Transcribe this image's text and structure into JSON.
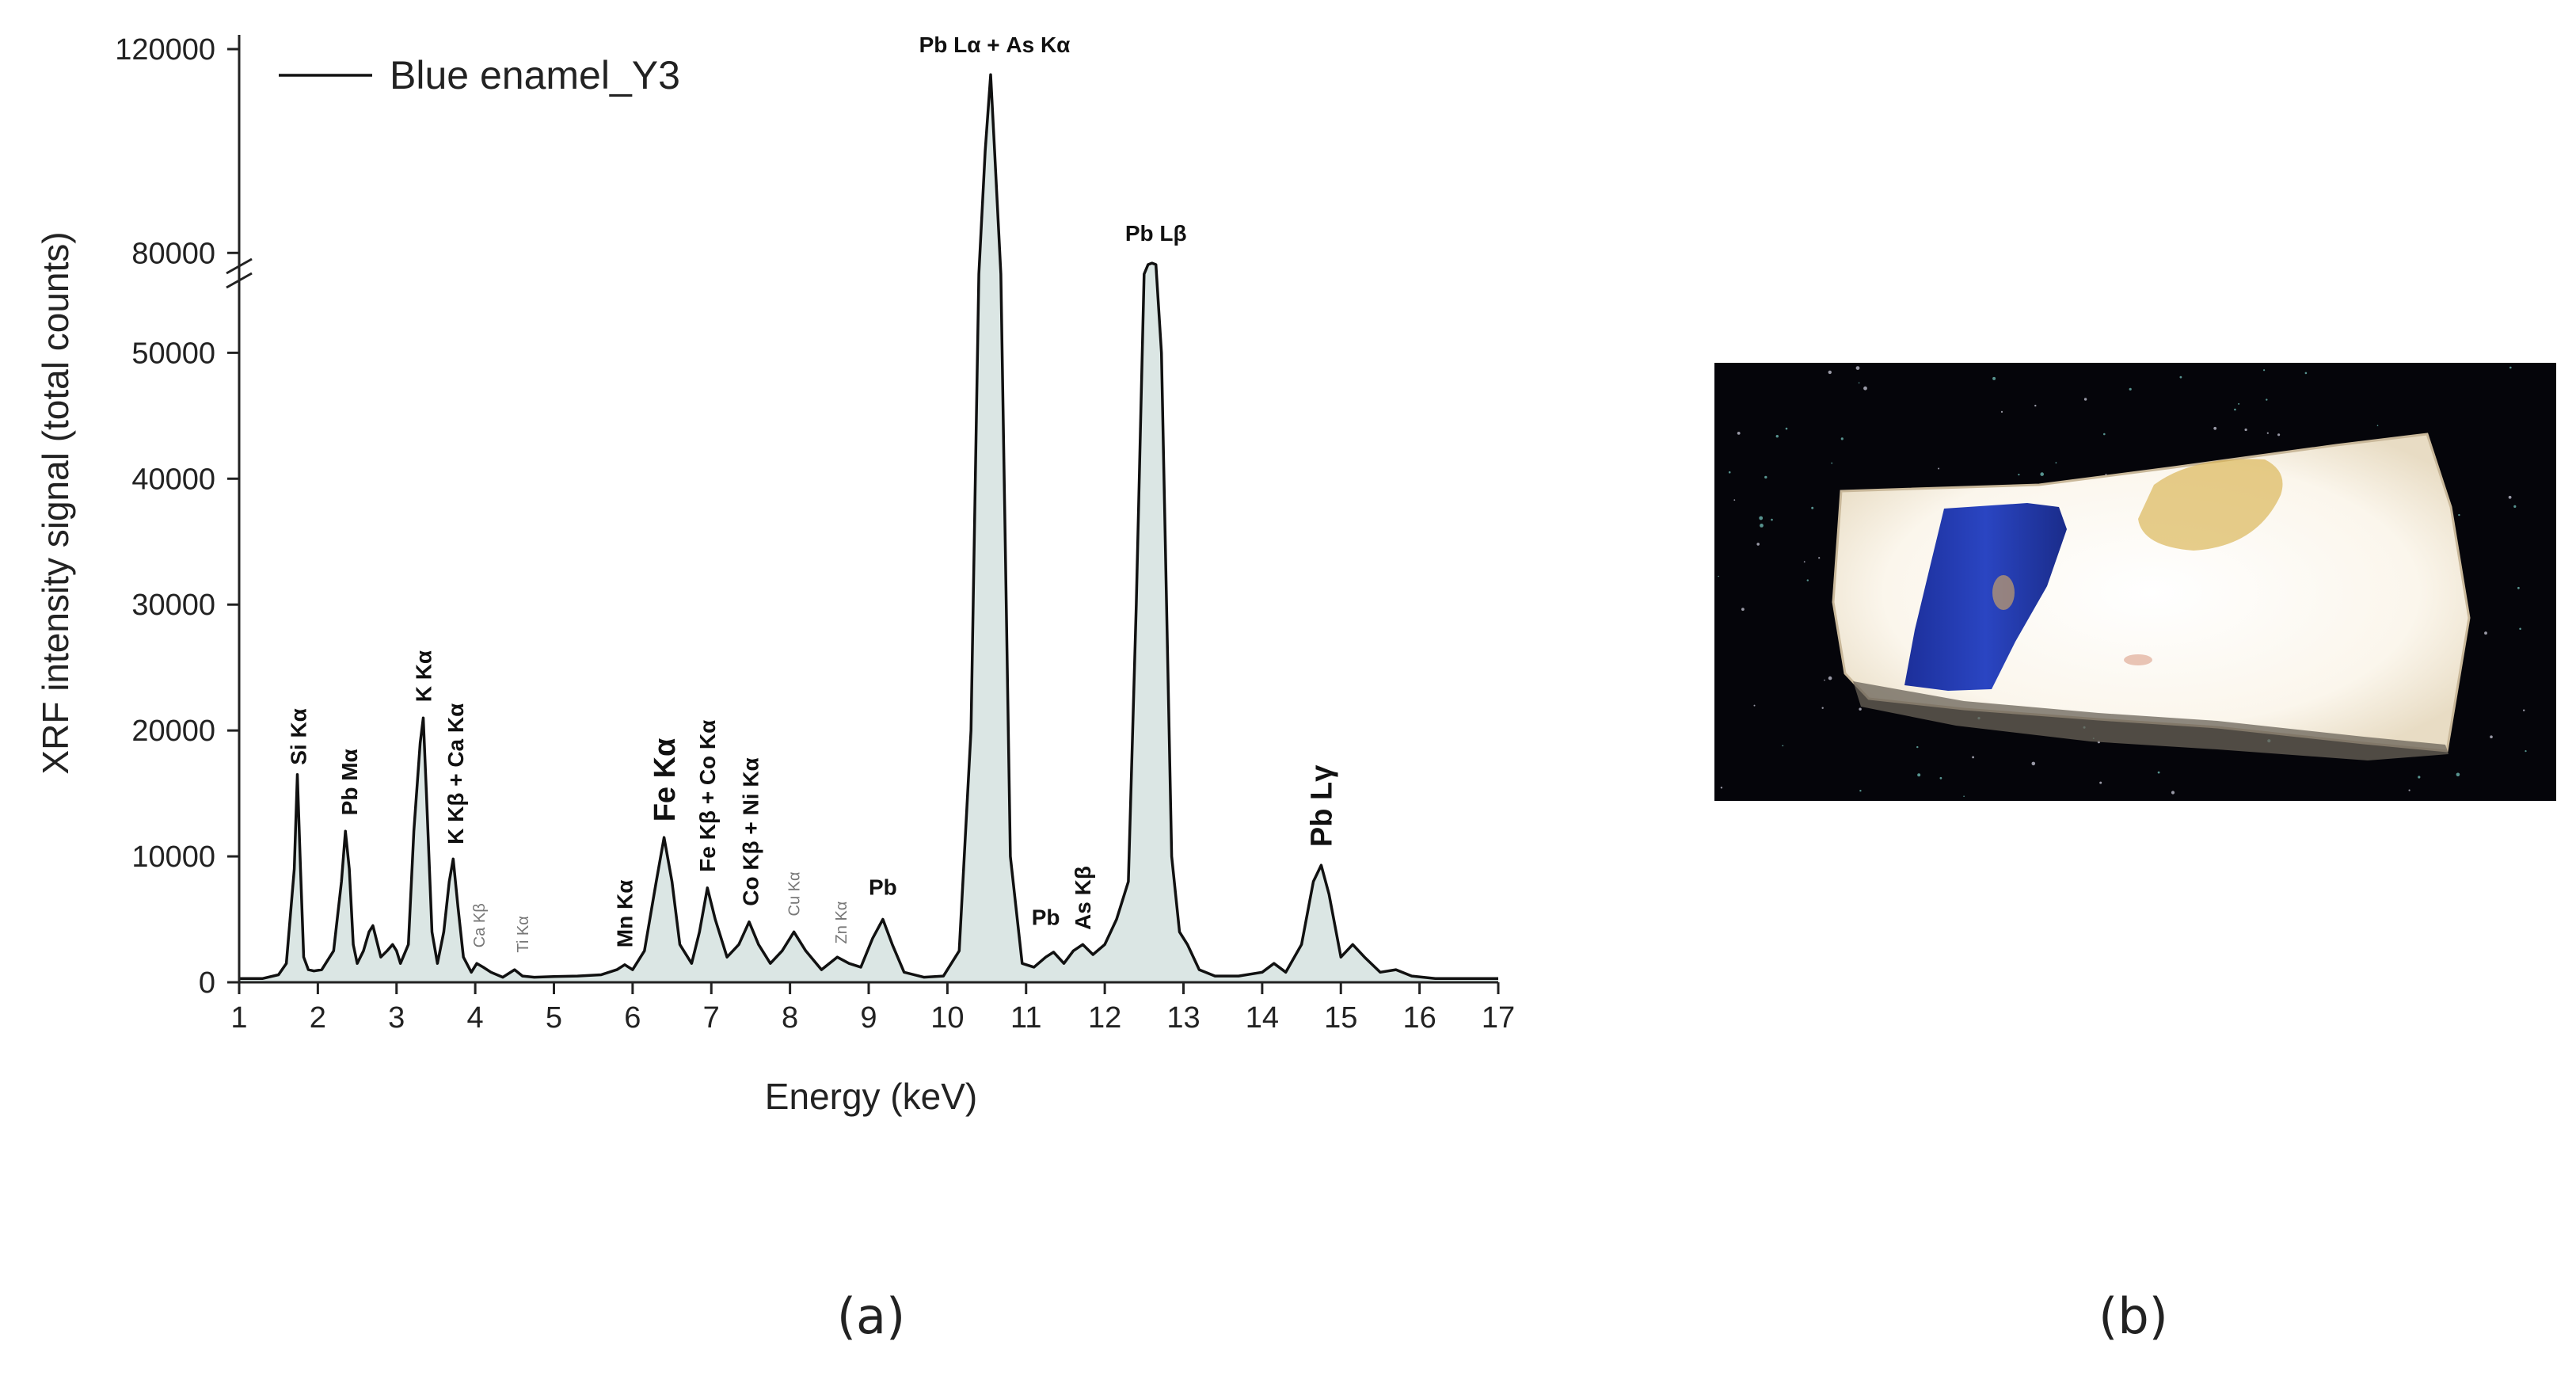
{
  "figure": {
    "panel_a_label": "(a)",
    "panel_b_label": "(b)"
  },
  "chart_data": {
    "type": "line",
    "xlabel": "Energy (keV)",
    "ylabel": "XRF intensity signal (total counts)",
    "xlim": [
      1,
      17
    ],
    "x_ticks": [
      1,
      2,
      3,
      4,
      5,
      6,
      7,
      8,
      9,
      10,
      11,
      12,
      13,
      14,
      15,
      16,
      17
    ],
    "y_ticks_lower": [
      0,
      10000,
      20000,
      30000,
      40000,
      50000
    ],
    "y_ticks_upper": [
      80000,
      120000
    ],
    "y_axis_break": [
      56000,
      76000
    ],
    "legend": "top-left",
    "series": [
      {
        "name": "Blue enamel_Y3",
        "color": "#111111",
        "fill": "#dbe6e4",
        "x": [
          1.0,
          1.3,
          1.5,
          1.6,
          1.7,
          1.74,
          1.78,
          1.82,
          1.88,
          1.95,
          2.05,
          2.2,
          2.3,
          2.35,
          2.4,
          2.45,
          2.5,
          2.58,
          2.65,
          2.7,
          2.74,
          2.8,
          2.88,
          2.95,
          3.0,
          3.05,
          3.15,
          3.22,
          3.3,
          3.34,
          3.38,
          3.45,
          3.52,
          3.6,
          3.67,
          3.72,
          3.78,
          3.85,
          3.95,
          4.02,
          4.1,
          4.2,
          4.35,
          4.5,
          4.6,
          4.75,
          5.0,
          5.3,
          5.6,
          5.8,
          5.9,
          6.0,
          6.15,
          6.3,
          6.4,
          6.5,
          6.6,
          6.75,
          6.85,
          6.95,
          7.05,
          7.2,
          7.35,
          7.48,
          7.6,
          7.75,
          7.9,
          8.05,
          8.2,
          8.4,
          8.6,
          8.75,
          8.9,
          9.05,
          9.18,
          9.3,
          9.45,
          9.7,
          9.95,
          10.15,
          10.3,
          10.4,
          10.48,
          10.55,
          10.6,
          10.68,
          10.8,
          10.95,
          11.1,
          11.25,
          11.35,
          11.48,
          11.6,
          11.72,
          11.85,
          12.0,
          12.15,
          12.3,
          12.4,
          12.5,
          12.55,
          12.6,
          12.65,
          12.72,
          12.85,
          12.95,
          13.05,
          13.2,
          13.4,
          13.7,
          14.0,
          14.15,
          14.3,
          14.5,
          14.65,
          14.75,
          14.85,
          15.0,
          15.15,
          15.3,
          15.5,
          15.7,
          15.9,
          16.2,
          16.6,
          17.0
        ],
        "y": [
          300,
          300,
          600,
          1500,
          9000,
          16500,
          9000,
          2000,
          1000,
          900,
          1000,
          2500,
          8000,
          12000,
          9000,
          3000,
          1500,
          2500,
          4000,
          4500,
          3500,
          2000,
          2500,
          3000,
          2500,
          1500,
          3000,
          12000,
          19000,
          21000,
          15000,
          4000,
          1500,
          4000,
          8000,
          9800,
          6000,
          2000,
          800,
          1500,
          1200,
          800,
          400,
          1000,
          500,
          400,
          450,
          500,
          600,
          1000,
          1400,
          1000,
          2500,
          8000,
          11500,
          8000,
          3000,
          1500,
          4000,
          7500,
          5000,
          2000,
          3000,
          4800,
          3000,
          1500,
          2500,
          4000,
          2500,
          1000,
          2000,
          1500,
          1200,
          3500,
          5000,
          3000,
          800,
          400,
          500,
          2500,
          20000,
          60000,
          100000,
          115000,
          100000,
          60000,
          10000,
          1500,
          1200,
          2000,
          2400,
          1500,
          2500,
          3000,
          2200,
          3000,
          5000,
          8000,
          30000,
          60000,
          72000,
          78000,
          72000,
          50000,
          10000,
          4000,
          3000,
          1000,
          500,
          500,
          800,
          1500,
          800,
          3000,
          8000,
          9300,
          7000,
          2000,
          3000,
          2000,
          800,
          1000,
          500,
          300,
          300,
          300
        ]
      }
    ],
    "annotations": [
      {
        "text": "Si Kα",
        "x": 1.75,
        "y": 16500,
        "rotate": true,
        "style": "bold"
      },
      {
        "text": "Pb Mα",
        "x": 2.4,
        "y": 12500,
        "rotate": true,
        "style": "bold"
      },
      {
        "text": "K Kα",
        "x": 3.34,
        "y": 21500,
        "rotate": true,
        "style": "bold"
      },
      {
        "text": "K Kβ + Ca Kα",
        "x": 3.75,
        "y": 10200,
        "rotate": true,
        "style": "bold"
      },
      {
        "text": "Ca Kβ",
        "x": 4.05,
        "y": 2000,
        "rotate": true,
        "style": "grey"
      },
      {
        "text": "Ti Kα",
        "x": 4.6,
        "y": 1600,
        "rotate": true,
        "style": "grey"
      },
      {
        "text": "Mn Kα",
        "x": 5.9,
        "y": 2000,
        "rotate": true,
        "style": "bold"
      },
      {
        "text": "Fe Kα",
        "x": 6.4,
        "y": 12000,
        "rotate": true,
        "style": "large"
      },
      {
        "text": "Fe Kβ + Co Kα",
        "x": 6.95,
        "y": 8000,
        "rotate": true,
        "style": "bold"
      },
      {
        "text": "Co Kβ + Ni Kα",
        "x": 7.5,
        "y": 5300,
        "rotate": true,
        "style": "bold"
      },
      {
        "text": "Cu Kα",
        "x": 8.05,
        "y": 4500,
        "rotate": true,
        "style": "grey"
      },
      {
        "text": "Zn Kα",
        "x": 8.65,
        "y": 2300,
        "rotate": true,
        "style": "grey"
      },
      {
        "text": "Pb",
        "x": 9.18,
        "y": 6200,
        "rotate": false,
        "style": "bold"
      },
      {
        "text": "Pb Lα + As Kα",
        "x": 10.6,
        "y": 117500,
        "rotate": false,
        "style": "bold"
      },
      {
        "text": "Pb",
        "x": 11.25,
        "y": 3800,
        "rotate": false,
        "style": "bold"
      },
      {
        "text": "As Kβ",
        "x": 11.72,
        "y": 3400,
        "rotate": true,
        "style": "bold"
      },
      {
        "text": "Pb Lβ",
        "x": 12.65,
        "y": 80500,
        "rotate": false,
        "style": "bold"
      },
      {
        "text": "Pb Lγ",
        "x": 14.75,
        "y": 10000,
        "rotate": true,
        "style": "large"
      }
    ]
  }
}
